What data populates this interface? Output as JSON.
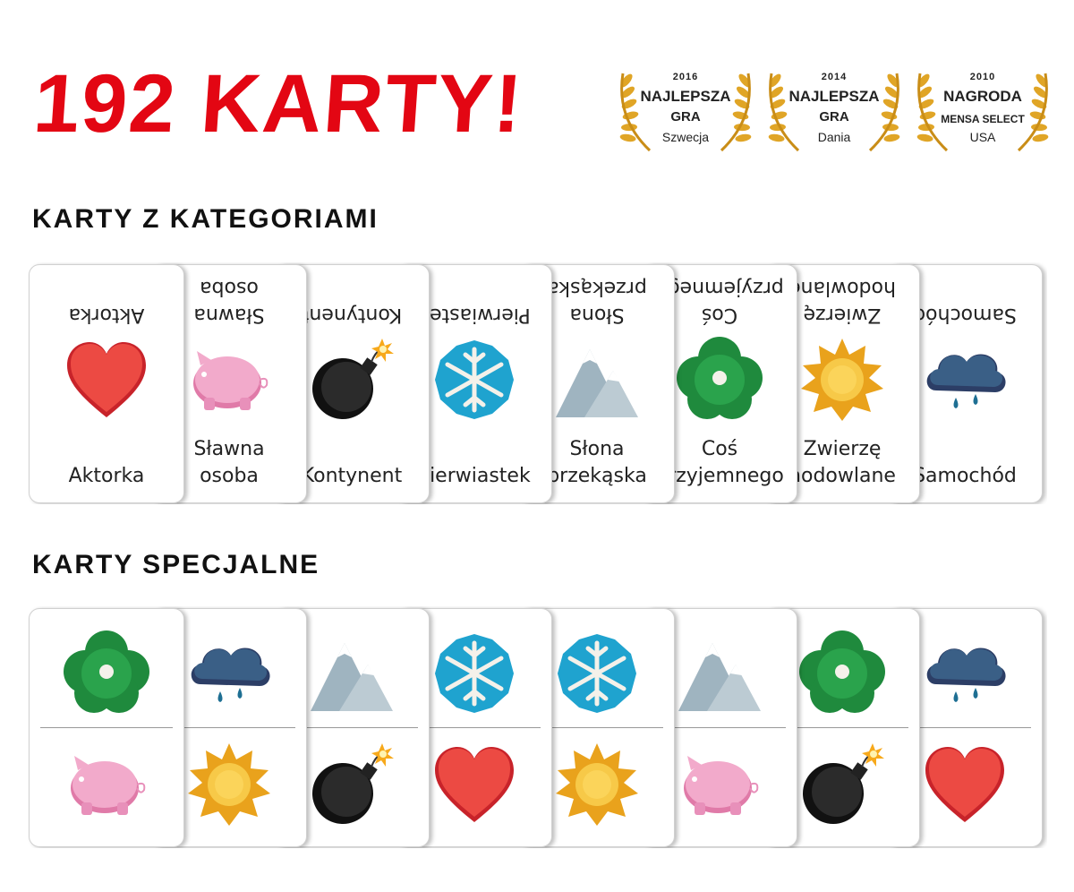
{
  "title": "192 KARTY!",
  "awards": [
    {
      "year": "2016",
      "line1": "NAJLEPSZA",
      "line2": "GRA",
      "line3": "Szwecja"
    },
    {
      "year": "2014",
      "line1": "NAJLEPSZA",
      "line2": "GRA",
      "line3": "Dania"
    },
    {
      "year": "2010",
      "line1": "NAGRODA",
      "line2": "MENSA SELECT",
      "line3": "USA"
    }
  ],
  "sections": {
    "categories": "Karty z kategoriami",
    "special": "Karty specjalne"
  },
  "category_cards": [
    {
      "label": "Aktorka",
      "icon": "heart-icon"
    },
    {
      "label": "Sławna\nosoba",
      "icon": "pig-icon"
    },
    {
      "label": "Kontynent",
      "icon": "bomb-icon"
    },
    {
      "label": "Pierwiastek",
      "icon": "snowflake-icon"
    },
    {
      "label": "Słona\nprzekąska",
      "icon": "mountain-icon"
    },
    {
      "label": "Coś\nprzyjemnego",
      "icon": "flower-icon"
    },
    {
      "label": "Zwierzę\nhodowlane",
      "icon": "sun-icon"
    },
    {
      "label": "Samochód",
      "icon": "cloud-icon"
    }
  ],
  "special_cards": [
    {
      "top": "flower-icon",
      "bottom": "pig-icon"
    },
    {
      "top": "cloud-icon",
      "bottom": "sun-icon"
    },
    {
      "top": "mountain-icon",
      "bottom": "bomb-icon"
    },
    {
      "top": "snowflake-icon",
      "bottom": "heart-icon"
    },
    {
      "top": "snowflake-icon",
      "bottom": "sun-icon"
    },
    {
      "top": "mountain-icon",
      "bottom": "pig-icon"
    },
    {
      "top": "flower-icon",
      "bottom": "bomb-icon"
    },
    {
      "top": "cloud-icon",
      "bottom": "heart-icon"
    }
  ],
  "colors": {
    "title": "#e30613",
    "gold": "#e0a526"
  }
}
